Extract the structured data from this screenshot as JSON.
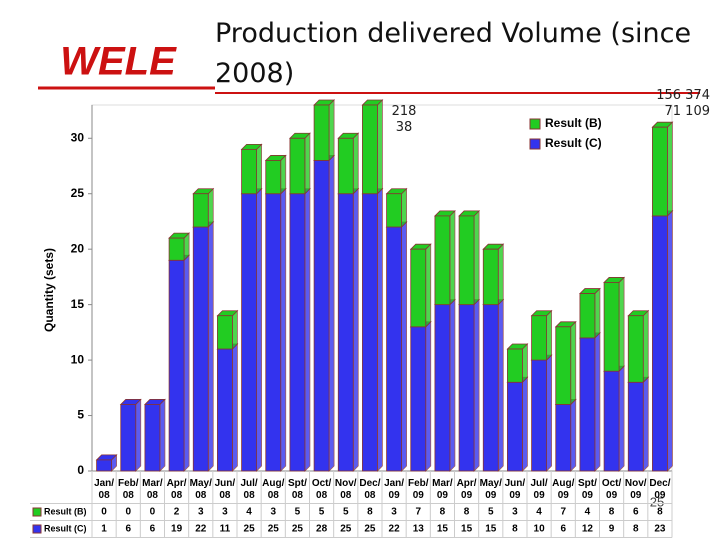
{
  "logo": "WELE",
  "page_number": "25",
  "chart_data": {
    "type": "bar",
    "stacked": true,
    "title": "Production delivered Volume (since 2008)",
    "y_label": "Quantity (sets)",
    "annotations": [
      "218 38",
      "156 374 71 109"
    ],
    "categories": [
      "Jan/08",
      "Feb/08",
      "Mar/08",
      "Apr/08",
      "May/08",
      "Jun/08",
      "Jul/08",
      "Aug/08",
      "Spt/08",
      "Oct/08",
      "Nov/08",
      "Dec/08",
      "Jan/09",
      "Feb/09",
      "Mar/09",
      "Apr/09",
      "May/09",
      "Jun/09",
      "Jul/09",
      "Aug/09",
      "Spt/09",
      "Oct/09",
      "Nov/09",
      "Dec/09"
    ],
    "series": [
      {
        "name": "Result (B)",
        "color": "#22cc22",
        "values": [
          0,
          0,
          0,
          2,
          3,
          3,
          4,
          3,
          5,
          5,
          5,
          8,
          3,
          7,
          8,
          8,
          5,
          3,
          4,
          7,
          4,
          8,
          6,
          8
        ]
      },
      {
        "name": "Result (C)",
        "color": "#3333ee",
        "values": [
          1,
          6,
          6,
          19,
          22,
          11,
          25,
          25,
          25,
          28,
          25,
          25,
          22,
          13,
          15,
          15,
          15,
          8,
          10,
          6,
          12,
          9,
          8,
          23
        ]
      }
    ],
    "ylim": [
      0,
      33
    ],
    "yticks": [
      0,
      5,
      10,
      15,
      20,
      25,
      30
    ],
    "legend": "upper right"
  }
}
